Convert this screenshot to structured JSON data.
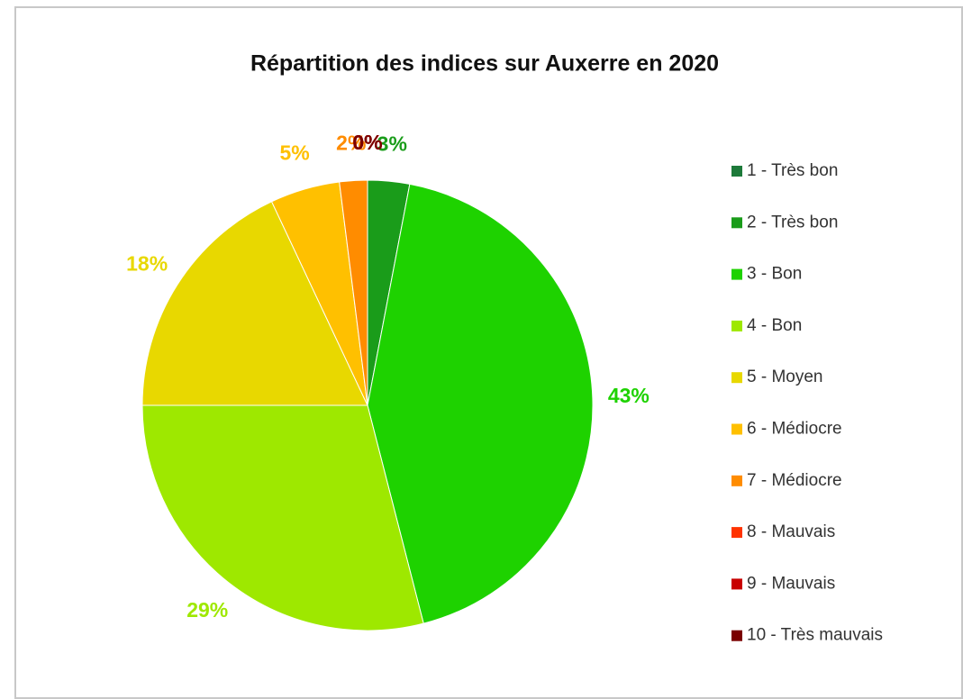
{
  "chart_data": {
    "type": "pie",
    "title": "Répartition des indices  sur Auxerre en 2020",
    "categories": [
      "1 - Très bon",
      "2 - Très bon",
      "3 - Bon",
      "4 - Bon",
      "5 - Moyen",
      "6 - Médiocre",
      "7 - Médiocre",
      "8 - Mauvais",
      "9 - Mauvais",
      "10 - Très mauvais"
    ],
    "values": [
      0,
      3,
      43,
      29,
      18,
      5,
      2,
      0,
      0,
      0
    ],
    "value_labels": [
      "0%",
      "3%",
      "43%",
      "29%",
      "18%",
      "5%",
      "2%",
      "0%",
      "0%",
      "0%"
    ],
    "colors": [
      "#1d7a3a",
      "#1a9c1a",
      "#1ed200",
      "#9ee800",
      "#e8d800",
      "#ffc000",
      "#ff8c00",
      "#ff3300",
      "#c80000",
      "#7a0000"
    ],
    "legend": "right"
  }
}
